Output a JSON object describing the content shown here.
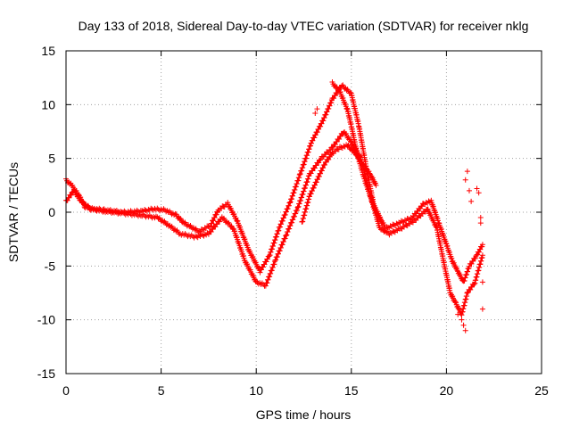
{
  "chart_data": {
    "type": "scatter",
    "title": "Day 133 of 2018, Sidereal Day-to-day VTEC variation (SDTVAR) for receiver nklg",
    "xlabel": "GPS time / hours",
    "ylabel": "SDTVAR / TECUs",
    "xlim": [
      0,
      25
    ],
    "ylim": [
      -15,
      15
    ],
    "xticks": [
      0,
      5,
      10,
      15,
      20,
      25
    ],
    "yticks": [
      -15,
      -10,
      -5,
      0,
      5,
      10,
      15
    ],
    "grid": true,
    "marker": "+",
    "color": "#ff0000",
    "series": [
      {
        "name": "track-1",
        "x": [
          0.0,
          0.3,
          0.7,
          1.0,
          1.5,
          2.0,
          3.0,
          4.0,
          4.6,
          5.2,
          5.8,
          6.2,
          7.0,
          7.6,
          8.0,
          8.5,
          9.0,
          9.6,
          10.2,
          10.7,
          11.2,
          11.8,
          12.3,
          12.9,
          13.5,
          14.0,
          14.5,
          15.0,
          15.4,
          15.8,
          16.2,
          16.8,
          17.5,
          18.2,
          18.8,
          19.2,
          19.6,
          20.0,
          20.3,
          20.6,
          20.9,
          21.2,
          21.6,
          21.9
        ],
        "y": [
          3.0,
          2.5,
          1.5,
          0.5,
          0.3,
          0.2,
          0.0,
          0.1,
          0.3,
          0.2,
          -0.3,
          -1.0,
          -1.8,
          -1.2,
          0.2,
          0.8,
          -0.8,
          -3.5,
          -5.5,
          -4.0,
          -1.5,
          1.0,
          3.5,
          6.5,
          8.5,
          10.5,
          11.8,
          11.0,
          8.0,
          4.0,
          0.5,
          -1.5,
          -1.0,
          -0.5,
          0.8,
          1.0,
          -1.0,
          -3.0,
          -4.5,
          -5.5,
          -6.5,
          -5.0,
          -4.0,
          -3.0
        ]
      },
      {
        "name": "track-2",
        "x": [
          0.0,
          0.4,
          0.8,
          1.3,
          2.0,
          3.0,
          4.0,
          4.8,
          5.4,
          6.0,
          6.8,
          7.5,
          8.2,
          8.8,
          9.4,
          10.0,
          10.5,
          11.0,
          11.6,
          12.2,
          12.8,
          13.4,
          14.0,
          14.6,
          15.0,
          15.5,
          16.0,
          16.5,
          17.0,
          17.6,
          18.3,
          19.0,
          19.5,
          19.9,
          20.2,
          20.5,
          20.8,
          21.1,
          21.5,
          21.9
        ],
        "y": [
          1.0,
          2.0,
          1.0,
          0.3,
          0.1,
          -0.1,
          -0.3,
          -0.5,
          -1.2,
          -2.0,
          -2.3,
          -2.0,
          -0.5,
          -1.5,
          -4.5,
          -6.5,
          -6.8,
          -4.5,
          -2.0,
          0.5,
          3.5,
          5.0,
          6.0,
          7.5,
          6.5,
          5.0,
          1.5,
          -1.5,
          -2.0,
          -1.5,
          -0.8,
          0.3,
          -1.5,
          -5.0,
          -7.5,
          -8.5,
          -9.5,
          -7.5,
          -6.5,
          -4.0
        ]
      },
      {
        "name": "track-3",
        "x": [
          12.4,
          12.8,
          13.2,
          13.6,
          14.0,
          14.4,
          14.8,
          15.2,
          15.6,
          16.0,
          16.3
        ],
        "y": [
          -1.0,
          1.5,
          3.0,
          4.5,
          5.5,
          6.0,
          6.2,
          5.5,
          4.5,
          3.5,
          2.5
        ]
      },
      {
        "name": "track-4",
        "x": [
          14.0,
          14.4,
          14.8,
          15.0,
          15.3,
          15.7,
          16.1,
          16.6
        ],
        "y": [
          12.0,
          11.2,
          9.5,
          8.0,
          5.5,
          3.0,
          1.0,
          -1.0
        ]
      },
      {
        "name": "scatter-outliers",
        "x": [
          13.1,
          13.2,
          21.0,
          21.1,
          21.2,
          21.3,
          21.6,
          21.7,
          21.8,
          21.8,
          21.9,
          21.9,
          20.9,
          21.0,
          20.6,
          20.8
        ],
        "y": [
          9.2,
          9.6,
          3.0,
          3.8,
          2.0,
          1.0,
          2.2,
          1.8,
          -0.5,
          -1.0,
          -6.5,
          -9.0,
          -10.5,
          -11.0,
          -9.5,
          -10.0
        ]
      }
    ]
  }
}
